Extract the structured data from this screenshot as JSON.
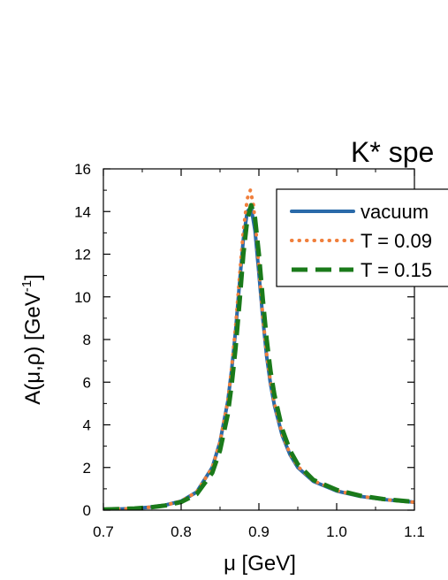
{
  "chart_data": {
    "type": "line",
    "title": "K* spe",
    "xlabel": "μ [GeV]",
    "ylabel_main": "A(μ,ρ) [GeV",
    "ylabel_sup": "-1",
    "ylabel_end": "]",
    "xlim": [
      0.7,
      1.1
    ],
    "ylim": [
      0,
      16
    ],
    "xticks": [
      "0.7",
      "0.8",
      "0.9",
      "1.0",
      "1.1"
    ],
    "xtick_values": [
      0.7,
      0.8,
      0.9,
      1.0,
      1.1
    ],
    "yticks": [
      "0",
      "2",
      "4",
      "6",
      "8",
      "10",
      "12",
      "14",
      "16"
    ],
    "ytick_values": [
      0,
      2,
      4,
      6,
      8,
      10,
      12,
      14,
      16
    ],
    "legend_position": "top-right",
    "grid": false,
    "series": [
      {
        "name": "vacuum",
        "color": "#2a6aa9",
        "style": "solid",
        "x": [
          0.7,
          0.72,
          0.74,
          0.76,
          0.78,
          0.8,
          0.82,
          0.84,
          0.85,
          0.86,
          0.865,
          0.87,
          0.875,
          0.88,
          0.885,
          0.89,
          0.895,
          0.9,
          0.905,
          0.91,
          0.915,
          0.92,
          0.93,
          0.94,
          0.95,
          0.97,
          1.0,
          1.03,
          1.06,
          1.1
        ],
        "y": [
          0.03,
          0.05,
          0.08,
          0.14,
          0.24,
          0.42,
          0.85,
          2.0,
          3.2,
          5.1,
          6.6,
          8.4,
          10.6,
          12.7,
          14.0,
          14.2,
          13.1,
          11.1,
          9.0,
          7.2,
          5.9,
          4.9,
          3.5,
          2.6,
          2.0,
          1.35,
          0.9,
          0.65,
          0.5,
          0.37
        ]
      },
      {
        "name": "T = 0.09",
        "color": "#f07f3c",
        "style": "dotted",
        "x": [
          0.7,
          0.72,
          0.74,
          0.76,
          0.78,
          0.8,
          0.82,
          0.84,
          0.85,
          0.86,
          0.865,
          0.87,
          0.875,
          0.88,
          0.885,
          0.889,
          0.893,
          0.897,
          0.9,
          0.905,
          0.91,
          0.915,
          0.92,
          0.93,
          0.94,
          0.95,
          0.97,
          1.0,
          1.03,
          1.06,
          1.1
        ],
        "y": [
          0.03,
          0.05,
          0.08,
          0.14,
          0.24,
          0.42,
          0.85,
          2.0,
          3.2,
          5.1,
          6.7,
          8.6,
          10.9,
          13.1,
          14.6,
          15.0,
          14.3,
          12.8,
          11.4,
          9.1,
          7.3,
          6.0,
          5.0,
          3.55,
          2.65,
          2.05,
          1.38,
          0.92,
          0.66,
          0.5,
          0.37
        ]
      },
      {
        "name": "T = 0.15",
        "color": "#1a7a1a",
        "style": "dashed",
        "x": [
          0.7,
          0.72,
          0.74,
          0.76,
          0.78,
          0.8,
          0.82,
          0.84,
          0.85,
          0.86,
          0.865,
          0.87,
          0.875,
          0.88,
          0.885,
          0.89,
          0.895,
          0.9,
          0.905,
          0.91,
          0.915,
          0.92,
          0.93,
          0.94,
          0.95,
          0.97,
          1.0,
          1.03,
          1.06,
          1.1
        ],
        "y": [
          0.03,
          0.05,
          0.08,
          0.13,
          0.22,
          0.38,
          0.75,
          1.75,
          2.8,
          4.5,
          5.9,
          7.6,
          9.7,
          12.0,
          13.6,
          14.3,
          13.7,
          12.0,
          9.9,
          8.0,
          6.5,
          5.4,
          3.8,
          2.8,
          2.15,
          1.42,
          0.95,
          0.68,
          0.52,
          0.39
        ]
      }
    ]
  }
}
